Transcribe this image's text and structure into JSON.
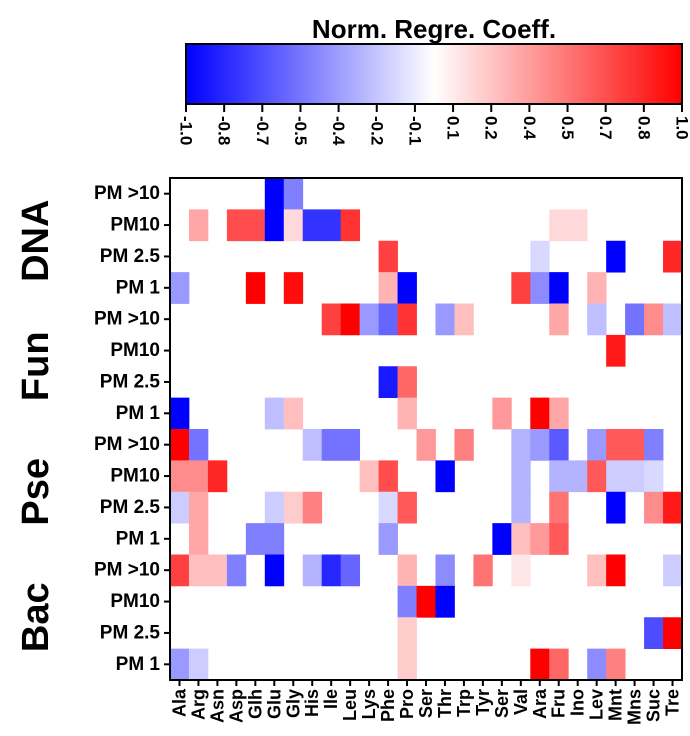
{
  "chart_data": {
    "type": "heatmap",
    "colorbar": {
      "title": "Norm. Regre. Coeff.",
      "tick_labels": [
        "-1.0",
        "-0.8",
        "-0.7",
        "-0.5",
        "-0.4",
        "-0.2",
        "-0.1",
        "0.1",
        "0.2",
        "0.4",
        "0.5",
        "0.7",
        "0.8",
        "1.0"
      ],
      "range": [
        -1.0,
        1.0
      ],
      "colors": {
        "negative": "#0000ff",
        "zero": "#ffffff",
        "positive": "#ff0000"
      }
    },
    "columns": [
      "Ala",
      "Arg",
      "Asn",
      "Asp",
      "Glh",
      "Glu",
      "Gly",
      "His",
      "Ile",
      "Leu",
      "Lys",
      "Phe",
      "Pro",
      "Ser",
      "Thr",
      "Trp",
      "Tyr",
      "Ser",
      "Val",
      "Ara",
      "Fru",
      "Ino",
      "Lev",
      "Mnt",
      "Mns",
      "Suc",
      "Tre"
    ],
    "groups": [
      {
        "name": "DNA",
        "rows": [
          "PM >10",
          "PM10",
          "PM 2.5",
          "PM 1"
        ]
      },
      {
        "name": "Fun",
        "rows": [
          "PM >10",
          "PM10",
          "PM 2.5",
          "PM 1"
        ]
      },
      {
        "name": "Pse",
        "rows": [
          "PM >10",
          "PM10",
          "PM 2.5",
          "PM 1"
        ]
      },
      {
        "name": "Bac",
        "rows": [
          "PM >10",
          "PM10",
          "PM 2.5",
          "PM 1"
        ]
      }
    ],
    "values": [
      [
        0,
        0,
        0,
        0,
        0,
        -1.0,
        -0.5,
        0,
        0,
        0,
        0,
        0,
        0,
        0,
        0,
        0,
        0,
        0,
        0,
        0,
        0,
        0,
        0,
        0,
        0,
        0,
        0
      ],
      [
        0,
        0.35,
        0,
        0.7,
        0.7,
        -1.0,
        0.15,
        -0.8,
        -0.8,
        0.8,
        0,
        0,
        0,
        0,
        0,
        0,
        0,
        0,
        0,
        0,
        0.15,
        0.15,
        0,
        0,
        0,
        0,
        0
      ],
      [
        0,
        0,
        0,
        0,
        0,
        0,
        0,
        0,
        0,
        0,
        0,
        0.75,
        0,
        0,
        0,
        0,
        0,
        0,
        0,
        -0.15,
        0,
        0,
        0,
        -1.0,
        0,
        0,
        0.85
      ],
      [
        -0.4,
        0,
        0,
        0,
        1.0,
        0,
        0.95,
        0,
        0,
        0,
        0,
        0.3,
        -1.0,
        0,
        0,
        0,
        0,
        0,
        0.75,
        -0.45,
        -1.0,
        0,
        0.3,
        0,
        0,
        0,
        0
      ],
      [
        0,
        0,
        0,
        0,
        0,
        0,
        0,
        0,
        0.75,
        1.0,
        -0.4,
        -0.6,
        0.8,
        0,
        -0.4,
        0.25,
        0,
        0,
        0,
        0,
        0.35,
        0,
        -0.25,
        0,
        -0.55,
        0.45,
        -0.25
      ],
      [
        0,
        0,
        0,
        0,
        0,
        0,
        0,
        0,
        0,
        0,
        0,
        0,
        0,
        0,
        0,
        0,
        0,
        0,
        0,
        0,
        0,
        0,
        0,
        0.9,
        0,
        0,
        0
      ],
      [
        0,
        0,
        0,
        0,
        0,
        0,
        0,
        0,
        0,
        0,
        0,
        -0.9,
        0.6,
        0,
        0,
        0,
        0,
        0,
        0,
        0,
        0,
        0,
        0,
        0,
        0,
        0,
        0
      ],
      [
        -1.0,
        0,
        0,
        0,
        0,
        -0.25,
        0.25,
        0,
        0,
        0,
        0,
        0,
        0.3,
        0,
        0,
        0,
        0,
        0.4,
        0,
        1.0,
        0.35,
        0,
        0,
        0,
        0,
        0,
        0
      ],
      [
        1.0,
        -0.55,
        0,
        0,
        0,
        0,
        0,
        -0.25,
        -0.55,
        -0.55,
        0,
        0,
        0,
        0.4,
        0,
        0.5,
        0,
        0,
        -0.3,
        -0.4,
        -0.65,
        0,
        -0.4,
        0.65,
        0.65,
        -0.5,
        0
      ],
      [
        0.45,
        0.45,
        0.85,
        0,
        0,
        0,
        0,
        0,
        0,
        0,
        0.25,
        0.7,
        0,
        0,
        -1.0,
        0,
        0,
        0,
        -0.3,
        0,
        -0.3,
        -0.3,
        0.65,
        -0.2,
        -0.2,
        -0.15,
        0
      ],
      [
        -0.2,
        0.35,
        0,
        0,
        0,
        -0.2,
        0.2,
        0.5,
        0,
        0,
        0,
        -0.15,
        0.65,
        0,
        0,
        0,
        0,
        0,
        -0.3,
        0,
        0.55,
        0,
        0,
        -1.0,
        0,
        0.45,
        0.9
      ],
      [
        0,
        0.35,
        0,
        0,
        -0.5,
        -0.5,
        0,
        0,
        0,
        0,
        0,
        -0.4,
        0,
        0,
        0,
        0,
        0,
        -1.0,
        0.25,
        0.4,
        0.65,
        0,
        0,
        0,
        0,
        0,
        0
      ],
      [
        0.75,
        0.25,
        0.25,
        -0.5,
        0,
        -1.0,
        0,
        -0.3,
        -0.85,
        -0.6,
        0,
        0,
        0.3,
        0,
        -0.45,
        0,
        0.55,
        0,
        0.1,
        0,
        0,
        0,
        0.25,
        1.0,
        0,
        0,
        -0.2
      ],
      [
        0,
        0,
        0,
        0,
        0,
        0,
        0,
        0,
        0,
        0,
        0,
        0,
        -0.5,
        1.0,
        -1.0,
        0,
        0,
        0,
        0,
        0,
        0,
        0,
        0,
        0,
        0,
        0,
        0
      ],
      [
        0,
        0,
        0,
        0,
        0,
        0,
        0,
        0,
        0,
        0,
        0,
        0,
        0.2,
        0,
        0,
        0,
        0,
        0,
        0,
        0,
        0,
        0,
        0,
        0,
        0,
        -0.7,
        1.0
      ],
      [
        -0.4,
        -0.2,
        0,
        0,
        0,
        0,
        0,
        0,
        0,
        0,
        0,
        0,
        0.2,
        0,
        0,
        0,
        0,
        0,
        0,
        1.0,
        0.6,
        0,
        -0.45,
        0.5,
        0,
        0,
        0
      ]
    ]
  }
}
